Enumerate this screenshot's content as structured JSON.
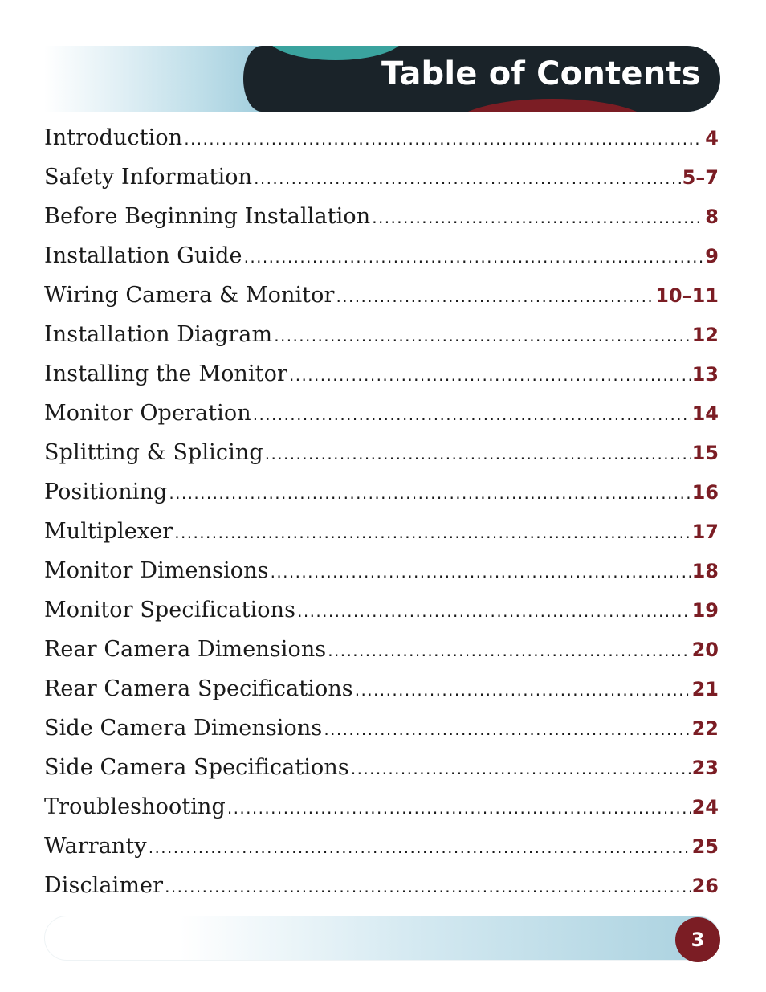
{
  "header": {
    "title": "Table of Contents"
  },
  "toc": [
    {
      "title": "Introduction",
      "page": "4"
    },
    {
      "title": "Safety Information",
      "page": "5–7"
    },
    {
      "title": "Before Beginning Installation",
      "page": "8"
    },
    {
      "title": "Installation Guide",
      "page": "9"
    },
    {
      "title": "Wiring Camera & Monitor",
      "page": "10–11"
    },
    {
      "title": "Installation Diagram",
      "page": "12"
    },
    {
      "title": "Installing the Monitor",
      "page": "13"
    },
    {
      "title": "Monitor Operation",
      "page": "14"
    },
    {
      "title": "Splitting & Splicing",
      "page": "15"
    },
    {
      "title": "Positioning",
      "page": "16"
    },
    {
      "title": "Multiplexer",
      "page": "17"
    },
    {
      "title": "Monitor Dimensions",
      "page": "18"
    },
    {
      "title": "Monitor Specifications",
      "page": "19"
    },
    {
      "title": "Rear Camera Dimensions",
      "page": "20"
    },
    {
      "title": "Rear Camera Specifications",
      "page": "21"
    },
    {
      "title": "Side Camera Dimensions",
      "page": "22"
    },
    {
      "title": "Side Camera Specifications",
      "page": "23"
    },
    {
      "title": "Troubleshooting",
      "page": "24"
    },
    {
      "title": "Warranty",
      "page": "25"
    },
    {
      "title": "Disclaimer",
      "page": "26"
    }
  ],
  "footer": {
    "page_number": "3"
  },
  "colors": {
    "accent_red": "#7b1d24",
    "header_dark": "#1a2329",
    "teal": "#3aa39e",
    "light_blue": "#a9d1df"
  }
}
